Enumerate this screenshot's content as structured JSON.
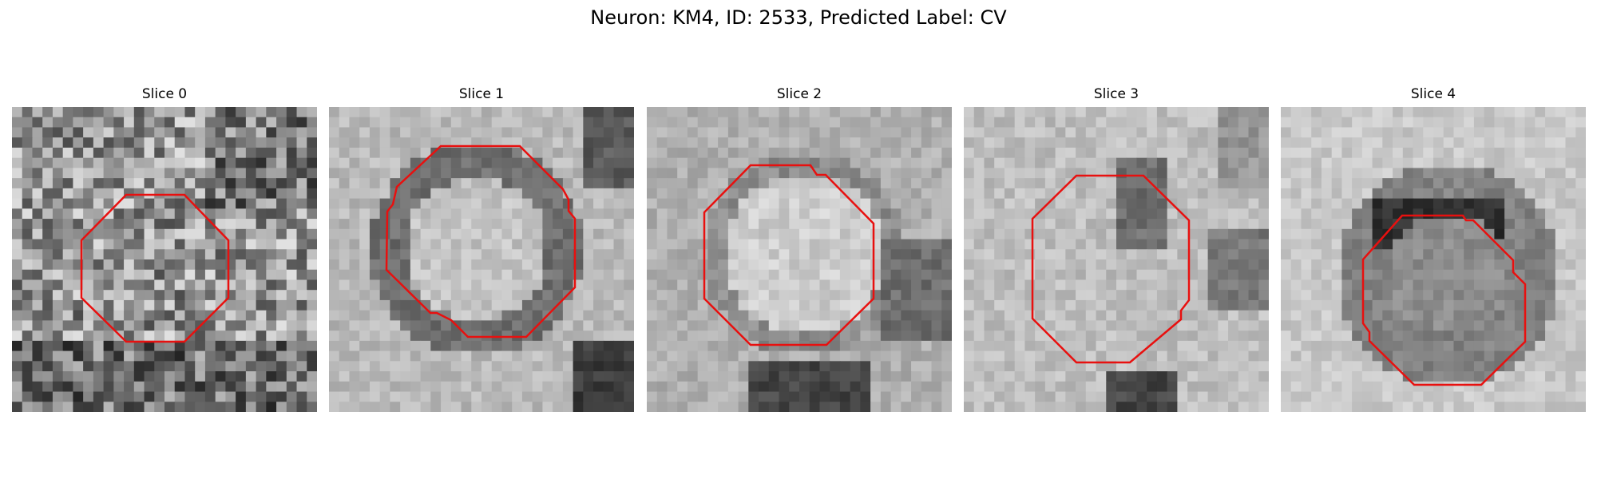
{
  "figure": {
    "title": "Neuron: KM4, ID: 2533, Predicted Label: CV"
  },
  "colors": {
    "contour": "#e8100f",
    "background": "#ffffff",
    "colormap": "grayscale"
  },
  "slices": [
    {
      "title": "Slice 0",
      "pattern": "noisy-textured",
      "contour": "octagon"
    },
    {
      "title": "Slice 1",
      "pattern": "light-disc-dark-ring",
      "contour": "octagon"
    },
    {
      "title": "Slice 2",
      "pattern": "light-disc-dark-lower-right",
      "contour": "octagon"
    },
    {
      "title": "Slice 3",
      "pattern": "light-with-dark-streaks",
      "contour": "octagon"
    },
    {
      "title": "Slice 4",
      "pattern": "dark-ring-upper",
      "contour": "octagon"
    }
  ]
}
